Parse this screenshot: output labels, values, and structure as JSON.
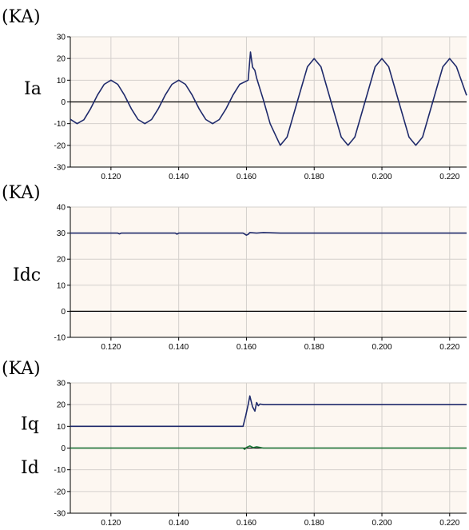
{
  "chart_data": [
    {
      "type": "line",
      "unit_label": "(KA)",
      "ylim": [
        -30,
        30
      ],
      "yticks": [
        30,
        20,
        10,
        0,
        -10,
        -20,
        -30
      ],
      "xlim": [
        0.108,
        0.225
      ],
      "xticks": [
        "0.120",
        "0.140",
        "0.160",
        "0.180",
        "0.200",
        "0.220"
      ],
      "grid": true,
      "series": [
        {
          "name": "Ia",
          "color": "#1f2a6b",
          "x": [
            0.108,
            0.11,
            0.112,
            0.114,
            0.116,
            0.118,
            0.12,
            0.122,
            0.124,
            0.126,
            0.128,
            0.13,
            0.132,
            0.134,
            0.136,
            0.138,
            0.14,
            0.142,
            0.144,
            0.146,
            0.148,
            0.15,
            0.152,
            0.154,
            0.156,
            0.158,
            0.1605,
            0.1612,
            0.1618,
            0.1625,
            0.163,
            0.165,
            0.167,
            0.17,
            0.172,
            0.175,
            0.178,
            0.18,
            0.182,
            0.185,
            0.188,
            0.19,
            0.192,
            0.195,
            0.198,
            0.2,
            0.202,
            0.205,
            0.208,
            0.21,
            0.212,
            0.215,
            0.218,
            0.22,
            0.222,
            0.225
          ],
          "values": [
            -8,
            -10,
            -8.2,
            -3.1,
            3.1,
            8.1,
            10,
            8.1,
            3.1,
            -3.1,
            -8.1,
            -10,
            -8.1,
            -3.1,
            3.1,
            8.1,
            10,
            8.1,
            3.1,
            -3.1,
            -8.1,
            -10,
            -8.1,
            -3.1,
            3.1,
            8.1,
            10,
            23,
            16,
            14.5,
            11,
            1,
            -10,
            -20,
            -16.2,
            0,
            16.2,
            20,
            16.2,
            0,
            -16.2,
            -20,
            -16.2,
            0,
            16.2,
            20,
            16.2,
            0,
            -16.2,
            -20,
            -16.2,
            0,
            16.2,
            20,
            16.2,
            3
          ]
        }
      ]
    },
    {
      "type": "line",
      "unit_label": "(KA)",
      "ylim": [
        -10,
        40
      ],
      "yticks": [
        40,
        30,
        20,
        10,
        0,
        -10
      ],
      "xlim": [
        0.108,
        0.225
      ],
      "xticks": [
        "0.120",
        "0.140",
        "0.160",
        "0.180",
        "0.200",
        "0.220"
      ],
      "grid": true,
      "series": [
        {
          "name": "Idc",
          "color": "#1f2a6b",
          "x": [
            0.108,
            0.122,
            0.1225,
            0.123,
            0.139,
            0.1395,
            0.14,
            0.159,
            0.16,
            0.1605,
            0.161,
            0.163,
            0.165,
            0.17,
            0.18,
            0.2,
            0.225
          ],
          "values": [
            30,
            30,
            29.7,
            30,
            30,
            29.6,
            30,
            30,
            29.2,
            29.5,
            30.2,
            30,
            30.2,
            30,
            30,
            30,
            30
          ]
        }
      ]
    },
    {
      "type": "line",
      "unit_label": "(KA)",
      "ylim": [
        -30,
        30
      ],
      "yticks": [
        30,
        20,
        10,
        0,
        -10,
        -20,
        -30
      ],
      "xlim": [
        0.108,
        0.225
      ],
      "xticks": [
        "0.120",
        "0.140",
        "0.160",
        "0.180",
        "0.200",
        "0.220"
      ],
      "grid": true,
      "series": [
        {
          "name": "Iq",
          "color": "#1f2a6b",
          "x": [
            0.108,
            0.14,
            0.15,
            0.159,
            0.1598,
            0.1605,
            0.161,
            0.1618,
            0.1625,
            0.163,
            0.1635,
            0.164,
            0.165,
            0.17,
            0.19,
            0.225
          ],
          "values": [
            10,
            10,
            10,
            10,
            15,
            20,
            24,
            19,
            17,
            21,
            19.5,
            20.3,
            20,
            20,
            20,
            20
          ]
        },
        {
          "name": "Id",
          "color": "#1f7a3a",
          "x": [
            0.108,
            0.14,
            0.159,
            0.1595,
            0.16,
            0.161,
            0.162,
            0.163,
            0.165,
            0.19,
            0.225
          ],
          "values": [
            0,
            0,
            0,
            -0.6,
            0.3,
            1,
            0.2,
            0.6,
            0,
            0,
            0
          ]
        }
      ]
    }
  ]
}
